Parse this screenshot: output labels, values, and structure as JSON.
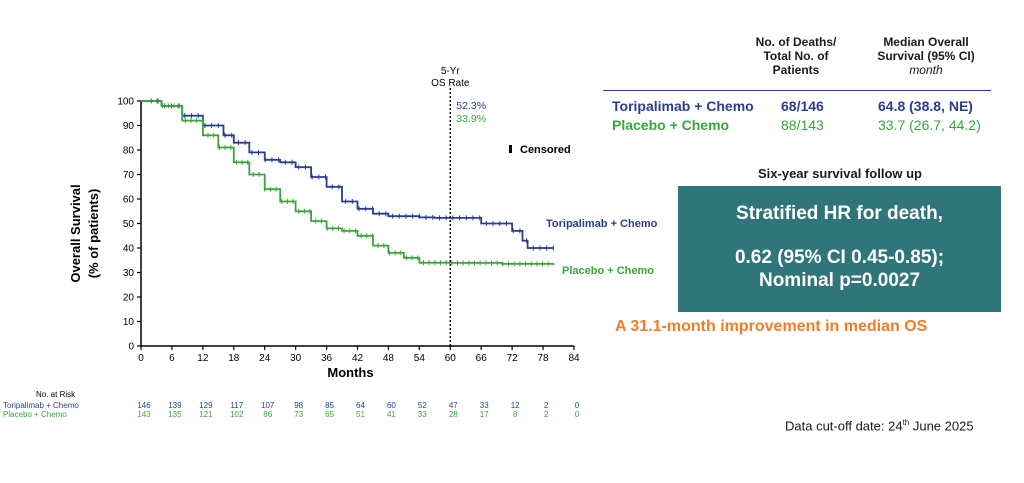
{
  "chart_data": {
    "type": "line",
    "title": "",
    "xlabel": "Months",
    "ylabel": "Overall Survival",
    "ylabel_sub": "(% of patients)",
    "xlim": [
      0,
      84
    ],
    "ylim": [
      0,
      100
    ],
    "xticks": [
      0,
      6,
      12,
      18,
      24,
      30,
      36,
      42,
      48,
      54,
      60,
      66,
      72,
      78,
      84
    ],
    "yticks": [
      0,
      10,
      20,
      30,
      40,
      50,
      60,
      70,
      80,
      90,
      100
    ],
    "grid": false,
    "series": [
      {
        "name": "Toripalimab + Chemo",
        "color": "#2b3d8f",
        "x": [
          0,
          4,
          8,
          12,
          16,
          18,
          21,
          24,
          27,
          30,
          33,
          36,
          39,
          42,
          45,
          48,
          51,
          54,
          57,
          60,
          66,
          72,
          74,
          75,
          80
        ],
        "y": [
          100,
          98,
          94,
          90,
          86,
          83,
          79,
          76,
          75,
          73,
          69,
          65,
          59,
          56,
          54,
          53,
          53,
          52.5,
          52.3,
          52.3,
          50,
          47,
          43,
          40,
          40
        ]
      },
      {
        "name": "Placebo + Chemo",
        "color": "#3aa53a",
        "x": [
          0,
          4,
          8,
          12,
          15,
          18,
          21,
          24,
          27,
          30,
          33,
          36,
          39,
          42,
          45,
          48,
          51,
          54,
          57,
          60,
          70,
          80
        ],
        "y": [
          100,
          98,
          92,
          86,
          81,
          75,
          70,
          64,
          59,
          55,
          51,
          48,
          47,
          45,
          41,
          38,
          36,
          34,
          34,
          33.9,
          33.5,
          33
        ]
      }
    ],
    "annotations": {
      "vline_x": 60,
      "vline_label_1": "5-Yr",
      "vline_label_2": "OS Rate",
      "rate_toripalimab": "52.3%",
      "rate_placebo": "33.9%",
      "censored_label": "Censored",
      "label_toripalimab": "Toripalimab + Chemo",
      "label_placebo": "Placebo + Chemo"
    },
    "risk_table": {
      "title": "No. at Risk",
      "rows": [
        {
          "label": "Toripalimab + Chemo",
          "color": "#2b3d8f",
          "values": [
            "146",
            "139",
            "129",
            "117",
            "107",
            "98",
            "85",
            "64",
            "60",
            "52",
            "47",
            "33",
            "12",
            "2",
            "0"
          ]
        },
        {
          "label": "Placebo + Chemo",
          "color": "#3aa53a",
          "values": [
            "143",
            "135",
            "121",
            "102",
            "86",
            "73",
            "65",
            "51",
            "41",
            "33",
            "28",
            "17",
            "8",
            "2",
            "0"
          ]
        }
      ]
    }
  },
  "summary_table": {
    "col1_header": [
      "No. of Deaths/",
      "Total No. of",
      "Patients"
    ],
    "col2_header": [
      "Median Overall",
      "Survival (95% CI)"
    ],
    "col2_unit": "month",
    "rows": [
      {
        "arm": "Toripalimab + Chemo",
        "deaths": "68/146",
        "median": "64.8 (38.8, NE)"
      },
      {
        "arm": "Placebo + Chemo",
        "deaths": "88/143",
        "median": "33.7 (26.7, 44.2)"
      }
    ]
  },
  "followup_title": "Six-year survival follow up",
  "hr_box": {
    "line1": "Stratified HR for death,",
    "line2": "0.62 (95% CI 0.45-0.85);",
    "line3": "Nominal p=0.0027",
    "color": "#2f7579"
  },
  "improvement": "A 31.1-month improvement in median OS",
  "cutoff": {
    "prefix": "Data cut-off date: 24",
    "sup": "th",
    "suffix": " June 2025"
  }
}
